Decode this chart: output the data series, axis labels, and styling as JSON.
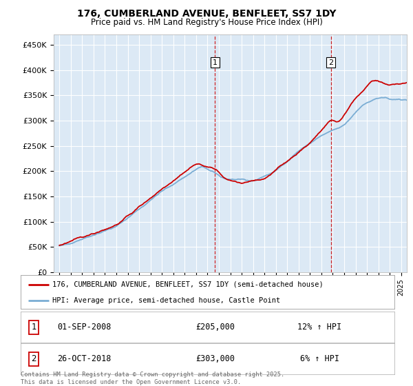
{
  "title": "176, CUMBERLAND AVENUE, BENFLEET, SS7 1DY",
  "subtitle": "Price paid vs. HM Land Registry's House Price Index (HPI)",
  "ylabel_ticks": [
    "£0",
    "£50K",
    "£100K",
    "£150K",
    "£200K",
    "£250K",
    "£300K",
    "£350K",
    "£400K",
    "£450K"
  ],
  "ytick_vals": [
    0,
    50000,
    100000,
    150000,
    200000,
    250000,
    300000,
    350000,
    400000,
    450000
  ],
  "ylim": [
    0,
    470000
  ],
  "xlim_start": 1994.5,
  "xlim_end": 2025.5,
  "background_color": "#ffffff",
  "plot_bg_color": "#dce9f5",
  "grid_color": "#ffffff",
  "sale1_date": 2008.67,
  "sale1_price": 205000,
  "sale2_date": 2018.83,
  "sale2_price": 303000,
  "red_line_color": "#cc0000",
  "blue_line_color": "#7aadd4",
  "dashed_line_color": "#cc0000",
  "legend1_label": "176, CUMBERLAND AVENUE, BENFLEET, SS7 1DY (semi-detached house)",
  "legend2_label": "HPI: Average price, semi-detached house, Castle Point",
  "annotation1_label": "1",
  "annotation1_date": "01-SEP-2008",
  "annotation1_price": "£205,000",
  "annotation1_hpi": "12% ↑ HPI",
  "annotation2_label": "2",
  "annotation2_date": "26-OCT-2018",
  "annotation2_price": "£303,000",
  "annotation2_hpi": "6% ↑ HPI",
  "footer": "Contains HM Land Registry data © Crown copyright and database right 2025.\nThis data is licensed under the Open Government Licence v3.0."
}
